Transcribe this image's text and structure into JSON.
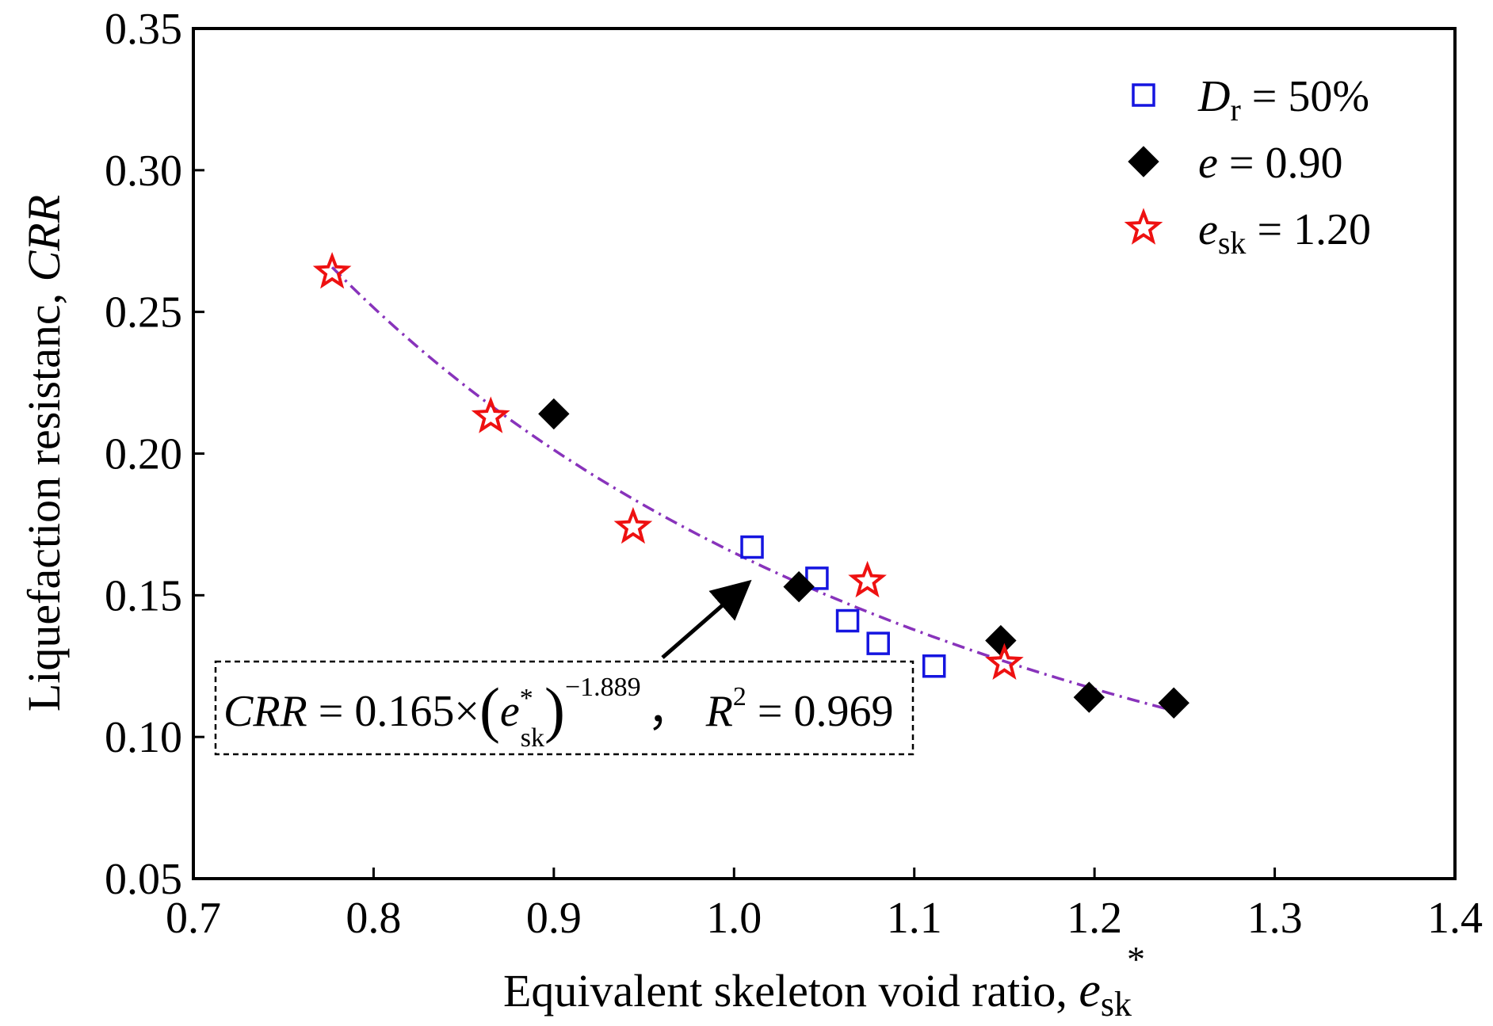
{
  "chart_data": {
    "type": "scatter",
    "title": "",
    "xlabel": {
      "main": "Equivalent skeleton void ratio, ",
      "var": "e",
      "sub": "sk",
      "sup": "*"
    },
    "ylabel": {
      "main": "Liquefaction resistanc, ",
      "var": "CRR"
    },
    "xlim": [
      0.7,
      1.4
    ],
    "ylim": [
      0.05,
      0.35
    ],
    "x_ticks": [
      "0.7",
      "0.8",
      "0.9",
      "1.0",
      "1.1",
      "1.2",
      "1.3",
      "1.4"
    ],
    "y_ticks": [
      "0.05",
      "0.10",
      "0.15",
      "0.20",
      "0.25",
      "0.30",
      "0.35"
    ],
    "legend_position": "top-right",
    "series": [
      {
        "name": "Dr = 50%",
        "legend": {
          "var": "D",
          "sub": "r",
          "rest": " = 50%"
        },
        "marker": "open-square",
        "color": "#1515e0",
        "x": [
          1.01,
          1.046,
          1.063,
          1.08,
          1.111
        ],
        "y": [
          0.167,
          0.156,
          0.141,
          0.133,
          0.125
        ]
      },
      {
        "name": "e = 0.90",
        "legend": {
          "var": "e",
          "sub": "",
          "rest": " = 0.90"
        },
        "marker": "filled-diamond",
        "color": "#000000",
        "x": [
          0.9,
          1.036,
          1.148,
          1.197,
          1.244
        ],
        "y": [
          0.214,
          0.153,
          0.134,
          0.114,
          0.112
        ]
      },
      {
        "name": "esk = 1.20",
        "legend": {
          "var": "e",
          "sub": "sk",
          "rest": " = 1.20"
        },
        "marker": "open-star",
        "color": "#ee1111",
        "x": [
          0.777,
          0.865,
          0.944,
          1.074,
          1.15
        ],
        "y": [
          0.264,
          0.213,
          0.174,
          0.155,
          0.126
        ]
      }
    ],
    "fit": {
      "label": "CRR = 0.165×(esk*)^−1.889, R² = 0.969",
      "color": "#8833bb",
      "a": 0.165,
      "b": -1.889,
      "x_range": [
        0.777,
        1.244
      ]
    },
    "annotation": {
      "eq_left": "CRR",
      "eq_mid": " = 0.165×",
      "eq_var": "e",
      "eq_sup": "*",
      "eq_sub": "sk",
      "eq_exp": "−1.889",
      "eq_sep": "，",
      "eq_r": "R",
      "eq_r_exp": "2",
      "eq_r_val": " = 0.969",
      "points_to": {
        "x": 1.01,
        "y": 0.162
      }
    }
  }
}
